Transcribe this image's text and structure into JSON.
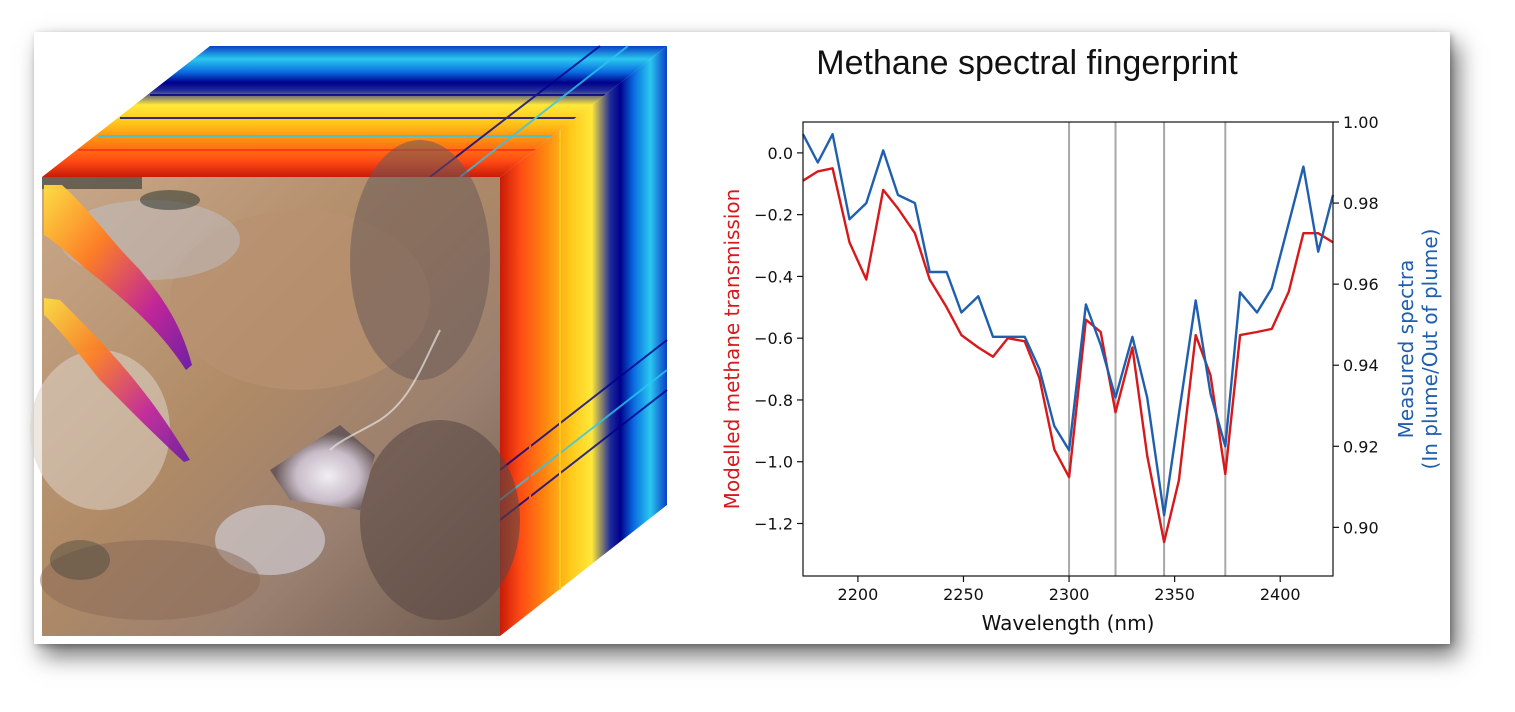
{
  "figure": {
    "title": "Methane spectral fingerprint",
    "colors": {
      "red": "#d7191c",
      "blue": "#1f5fad",
      "vline": "#a8a8a8"
    }
  },
  "cube_image": {
    "kind": "hyperspectral-cube-satellite-image-with-plume"
  },
  "chart_data": {
    "type": "line",
    "title": "Methane spectral fingerprint",
    "xlabel": "Wavelength (nm)",
    "ylabel_left": "Modelled methane transmission",
    "ylabel_right_line1": "Measured spectra",
    "ylabel_right_line2": "(In plume/Out of plume)",
    "xlim": [
      2174,
      2425
    ],
    "ylim_left": [
      -1.37,
      0.1
    ],
    "ylim_right": [
      0.888,
      1.0
    ],
    "xticks": [
      2200,
      2250,
      2300,
      2350,
      2400
    ],
    "yticks_left": [
      0.0,
      -0.2,
      -0.4,
      -0.6,
      -0.8,
      -1.0,
      -1.2
    ],
    "ytick_labels_left": [
      "0.0",
      "−0.2",
      "−0.4",
      "−0.6",
      "−0.8",
      "−1.0",
      "−1.2"
    ],
    "yticks_right": [
      1.0,
      0.98,
      0.96,
      0.94,
      0.92,
      0.9
    ],
    "ytick_labels_right": [
      "1.00",
      "0.98",
      "0.96",
      "0.94",
      "0.92",
      "0.90"
    ],
    "vlines": [
      2300,
      2322,
      2345,
      2374
    ],
    "grid": false,
    "series": [
      {
        "axis": "left",
        "color": "#d7191c",
        "x": [
          2174,
          2181,
          2188,
          2196,
          2204,
          2212,
          2219,
          2227,
          2234,
          2242,
          2249,
          2257,
          2264,
          2271,
          2279,
          2286,
          2293,
          2300,
          2308,
          2315,
          2322,
          2330,
          2337,
          2345,
          2352,
          2360,
          2367,
          2374,
          2381,
          2389,
          2396,
          2404,
          2411,
          2418,
          2425
        ],
        "y": [
          -0.09,
          -0.06,
          -0.05,
          -0.29,
          -0.41,
          -0.12,
          -0.18,
          -0.26,
          -0.41,
          -0.5,
          -0.59,
          -0.63,
          -0.66,
          -0.6,
          -0.61,
          -0.73,
          -0.96,
          -1.05,
          -0.54,
          -0.58,
          -0.84,
          -0.63,
          -0.98,
          -1.26,
          -1.06,
          -0.59,
          -0.72,
          -1.04,
          -0.59,
          -0.58,
          -0.57,
          -0.45,
          -0.26,
          -0.26,
          -0.29
        ]
      },
      {
        "axis": "right",
        "color": "#1f5fad",
        "x": [
          2174,
          2181,
          2188,
          2196,
          2204,
          2212,
          2219,
          2227,
          2234,
          2242,
          2249,
          2257,
          2264,
          2271,
          2279,
          2286,
          2293,
          2300,
          2308,
          2315,
          2322,
          2330,
          2337,
          2345,
          2352,
          2360,
          2367,
          2374,
          2381,
          2389,
          2396,
          2404,
          2411,
          2418,
          2425
        ],
        "y": [
          0.997,
          0.99,
          0.997,
          0.976,
          0.98,
          0.993,
          0.982,
          0.98,
          0.963,
          0.963,
          0.953,
          0.957,
          0.947,
          0.947,
          0.947,
          0.939,
          0.925,
          0.919,
          0.955,
          0.945,
          0.932,
          0.947,
          0.932,
          0.903,
          0.928,
          0.956,
          0.933,
          0.92,
          0.958,
          0.953,
          0.959,
          0.975,
          0.989,
          0.968,
          0.982
        ]
      }
    ]
  }
}
